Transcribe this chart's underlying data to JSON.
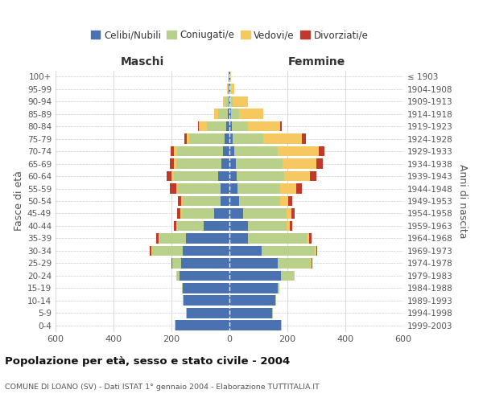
{
  "age_groups": [
    "0-4",
    "5-9",
    "10-14",
    "15-19",
    "20-24",
    "25-29",
    "30-34",
    "35-39",
    "40-44",
    "45-49",
    "50-54",
    "55-59",
    "60-64",
    "65-69",
    "70-74",
    "75-79",
    "80-84",
    "85-89",
    "90-94",
    "95-99",
    "100+"
  ],
  "birth_years": [
    "1999-2003",
    "1994-1998",
    "1989-1993",
    "1984-1988",
    "1979-1983",
    "1974-1978",
    "1969-1973",
    "1964-1968",
    "1959-1963",
    "1954-1958",
    "1949-1953",
    "1944-1948",
    "1939-1943",
    "1934-1938",
    "1929-1933",
    "1924-1928",
    "1919-1923",
    "1914-1918",
    "1909-1913",
    "1904-1908",
    "≤ 1903"
  ],
  "maschi": {
    "celibi": [
      185,
      148,
      158,
      162,
      172,
      168,
      162,
      150,
      88,
      52,
      30,
      30,
      38,
      28,
      22,
      18,
      10,
      6,
      3,
      2,
      2
    ],
    "coniugati": [
      3,
      3,
      3,
      3,
      8,
      28,
      105,
      92,
      92,
      112,
      132,
      148,
      155,
      155,
      158,
      120,
      68,
      32,
      10,
      4,
      1
    ],
    "vedovi": [
      0,
      0,
      0,
      0,
      2,
      2,
      3,
      3,
      3,
      5,
      5,
      5,
      6,
      8,
      12,
      10,
      28,
      14,
      8,
      2,
      0
    ],
    "divorziati": [
      0,
      0,
      0,
      0,
      2,
      3,
      5,
      8,
      8,
      12,
      12,
      22,
      18,
      15,
      10,
      8,
      2,
      1,
      0,
      0,
      0
    ]
  },
  "femmine": {
    "nubili": [
      178,
      148,
      158,
      168,
      178,
      168,
      112,
      65,
      65,
      48,
      32,
      28,
      25,
      22,
      18,
      12,
      8,
      6,
      3,
      2,
      2
    ],
    "coniugate": [
      3,
      3,
      3,
      3,
      45,
      112,
      182,
      202,
      132,
      148,
      142,
      148,
      165,
      160,
      148,
      105,
      55,
      28,
      8,
      4,
      1
    ],
    "vedove": [
      0,
      0,
      0,
      0,
      2,
      3,
      5,
      8,
      10,
      18,
      28,
      55,
      88,
      118,
      142,
      132,
      112,
      82,
      52,
      12,
      3
    ],
    "divorziate": [
      0,
      0,
      0,
      0,
      1,
      2,
      5,
      8,
      10,
      12,
      15,
      18,
      22,
      22,
      20,
      15,
      5,
      2,
      1,
      0,
      0
    ]
  },
  "colors": {
    "celibi": "#4a72b0",
    "coniugati": "#b8d08a",
    "vedovi": "#f5c860",
    "divorziati": "#c0392b"
  },
  "xlim": 600,
  "title": "Popolazione per età, sesso e stato civile - 2004",
  "subtitle": "COMUNE DI LOANO (SV) - Dati ISTAT 1° gennaio 2004 - Elaborazione TUTTITALIA.IT",
  "ylabel_left": "Fasce di età",
  "ylabel_right": "Anni di nascita",
  "header_maschi": "Maschi",
  "header_femmine": "Femmine",
  "legend_labels": [
    "Celibi/Nubili",
    "Coniugati/e",
    "Vedovi/e",
    "Divorziati/e"
  ],
  "bg_color": "#ffffff",
  "grid_color": "#cccccc",
  "xticks": [
    -600,
    -400,
    -200,
    0,
    200,
    400,
    600
  ],
  "xtick_labels": [
    "600",
    "400",
    "200",
    "0",
    "200",
    "400",
    "600"
  ]
}
